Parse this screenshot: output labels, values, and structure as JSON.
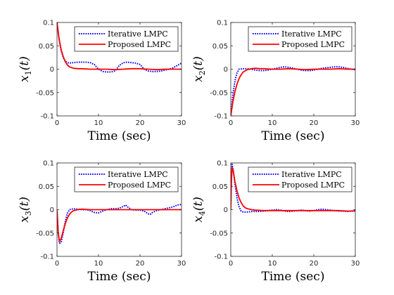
{
  "chart_data": [
    {
      "type": "line",
      "ylabel": "x_1(t)",
      "ylabel_main": "x",
      "ylabel_sub": "1",
      "ylabel_tail": "(t)",
      "xlabel": "Time (sec)",
      "xlim": [
        0,
        30
      ],
      "ylim": [
        -0.1,
        0.1
      ],
      "xticks": [
        "0",
        "10",
        "20",
        "30"
      ],
      "yticks": [
        "0.1",
        "0.05",
        "0",
        "-0.05",
        "-0.1"
      ],
      "legend_position": "top-right",
      "series": [
        {
          "name": "Iterative LMPC",
          "color": "#0000ff",
          "style": "dotted",
          "x": [
            0,
            0.5,
            1,
            1.5,
            2,
            2.5,
            3,
            4,
            5,
            6,
            7,
            8,
            9,
            10,
            11,
            12,
            13,
            14,
            15,
            16,
            17,
            18,
            19,
            20,
            21,
            22,
            23,
            24,
            25,
            26,
            27,
            28,
            29,
            30
          ],
          "y": [
            0.1,
            0.065,
            0.04,
            0.025,
            0.017,
            0.014,
            0.013,
            0.014,
            0.015,
            0.015,
            0.015,
            0.014,
            0.01,
            0.0,
            -0.005,
            -0.006,
            -0.006,
            -0.004,
            0.008,
            0.014,
            0.015,
            0.014,
            0.013,
            0.01,
            0.0,
            -0.004,
            -0.005,
            -0.005,
            -0.004,
            -0.002,
            0.0,
            0.003,
            0.008,
            0.013
          ]
        },
        {
          "name": "Proposed LMPC",
          "color": "#ff0000",
          "style": "solid",
          "x": [
            0,
            0.5,
            1,
            1.5,
            2,
            2.5,
            3,
            4,
            5,
            6,
            8,
            10,
            12,
            14,
            16,
            18,
            20,
            22,
            24,
            26,
            28,
            30
          ],
          "y": [
            0.1,
            0.065,
            0.042,
            0.027,
            0.016,
            0.009,
            0.005,
            0.002,
            0.001,
            0.001,
            0.0,
            0.0,
            0.0,
            -0.001,
            0.0,
            0.001,
            0.001,
            0.0,
            -0.001,
            0.0,
            0.0,
            0.0
          ]
        }
      ]
    },
    {
      "type": "line",
      "ylabel": "x_2(t)",
      "ylabel_main": "x",
      "ylabel_sub": "2",
      "ylabel_tail": "(t)",
      "xlabel": "Time (sec)",
      "xlim": [
        0,
        30
      ],
      "ylim": [
        -0.1,
        0.1
      ],
      "xticks": [
        "0",
        "10",
        "20",
        "30"
      ],
      "yticks": [
        "0.1",
        "0.05",
        "0",
        "-0.05",
        "-0.1"
      ],
      "legend_position": "top-right",
      "series": [
        {
          "name": "Iterative LMPC",
          "color": "#0000ff",
          "style": "dotted",
          "x": [
            0,
            0.5,
            1,
            1.5,
            2,
            3,
            4,
            5,
            6,
            7,
            8,
            9,
            10,
            11,
            12,
            13,
            14,
            15,
            16,
            17,
            18,
            19,
            20,
            21,
            22,
            23,
            24,
            25,
            26,
            27,
            28,
            29,
            30
          ],
          "y": [
            -0.1,
            -0.055,
            -0.025,
            -0.008,
            0.0,
            0.001,
            0.001,
            0.0,
            -0.002,
            -0.003,
            -0.003,
            -0.002,
            0.0,
            0.002,
            0.004,
            0.005,
            0.004,
            0.002,
            0.0,
            -0.002,
            -0.003,
            -0.003,
            -0.002,
            0.0,
            0.002,
            0.003,
            0.004,
            0.005,
            0.005,
            0.004,
            0.002,
            0.0,
            -0.001
          ]
        },
        {
          "name": "Proposed LMPC",
          "color": "#ff0000",
          "style": "solid",
          "x": [
            0,
            0.5,
            1,
            1.5,
            2,
            2.5,
            3,
            4,
            5,
            6,
            7,
            8,
            10,
            12,
            14,
            16,
            18,
            20,
            22,
            24,
            26,
            28,
            30
          ],
          "y": [
            -0.1,
            -0.07,
            -0.048,
            -0.032,
            -0.02,
            -0.012,
            -0.006,
            -0.001,
            0.001,
            0.002,
            0.001,
            0.001,
            0.0,
            0.0,
            0.001,
            0.0,
            -0.001,
            0.0,
            0.0,
            0.0,
            0.001,
            0.0,
            0.0
          ]
        }
      ]
    },
    {
      "type": "line",
      "ylabel": "x_3(t)",
      "ylabel_main": "x",
      "ylabel_sub": "3",
      "ylabel_tail": "(t)",
      "xlabel": "Time (sec)",
      "xlim": [
        0,
        30
      ],
      "ylim": [
        -0.1,
        0.1
      ],
      "xticks": [
        "0",
        "10",
        "20",
        "30"
      ],
      "yticks": [
        "0.1",
        "0.05",
        "0",
        "-0.05",
        "-0.1"
      ],
      "legend_position": "top-right",
      "series": [
        {
          "name": "Iterative LMPC",
          "color": "#0000ff",
          "style": "dotted",
          "x": [
            0,
            0.3,
            0.6,
            1,
            1.5,
            2,
            2.5,
            3,
            4,
            5,
            6,
            7,
            8,
            9,
            10,
            11,
            12,
            13,
            14,
            15,
            16,
            16.5,
            17,
            18,
            19,
            20,
            21,
            22,
            22.5,
            23,
            24,
            25,
            26,
            27,
            28,
            29,
            30
          ],
          "y": [
            0.0,
            -0.05,
            -0.072,
            -0.07,
            -0.05,
            -0.025,
            -0.008,
            0.0,
            0.002,
            0.001,
            0.0,
            0.0,
            -0.002,
            -0.006,
            -0.007,
            -0.003,
            0.0,
            0.002,
            0.002,
            0.003,
            0.007,
            0.01,
            0.006,
            0.0,
            -0.001,
            -0.001,
            -0.003,
            -0.009,
            -0.01,
            -0.006,
            -0.002,
            0.0,
            0.002,
            0.004,
            0.006,
            0.01,
            0.011
          ]
        },
        {
          "name": "Proposed LMPC",
          "color": "#ff0000",
          "style": "solid",
          "x": [
            0,
            0.3,
            0.6,
            1,
            1.5,
            2,
            2.5,
            3,
            3.5,
            4,
            5,
            6,
            8,
            10,
            12,
            14,
            16,
            18,
            20,
            22,
            24,
            26,
            28,
            30
          ],
          "y": [
            0.0,
            -0.05,
            -0.068,
            -0.062,
            -0.045,
            -0.03,
            -0.018,
            -0.01,
            -0.005,
            -0.002,
            0.0,
            0.001,
            0.0,
            0.0,
            0.0,
            0.0,
            0.0,
            0.0,
            0.0,
            0.0,
            0.0,
            0.0,
            0.0,
            0.0
          ]
        }
      ]
    },
    {
      "type": "line",
      "ylabel": "x_4(t)",
      "ylabel_main": "x",
      "ylabel_sub": "4",
      "ylabel_tail": "(t)",
      "xlabel": "Time (sec)",
      "xlim": [
        0,
        30
      ],
      "ylim": [
        -0.1,
        0.1
      ],
      "xticks": [
        "0",
        "10",
        "20",
        "30"
      ],
      "yticks": [
        "0.1",
        "0.05",
        "0",
        "-0.05",
        "-0.1"
      ],
      "legend_position": "top-right",
      "series": [
        {
          "name": "Iterative LMPC",
          "color": "#0000ff",
          "style": "dotted",
          "x": [
            0,
            0.15,
            0.3,
            0.6,
            1,
            1.5,
            2,
            2.5,
            3,
            4,
            5,
            6,
            7,
            8,
            9,
            10,
            11,
            12,
            13,
            14,
            15,
            16,
            17,
            18,
            19,
            20,
            21,
            22,
            23,
            24,
            25,
            26,
            27,
            28,
            29,
            30
          ],
          "y": [
            0.0,
            0.07,
            0.097,
            0.085,
            0.055,
            0.025,
            0.006,
            -0.003,
            -0.005,
            -0.005,
            -0.004,
            -0.004,
            -0.004,
            -0.003,
            -0.002,
            -0.001,
            0.0,
            -0.001,
            -0.003,
            -0.004,
            -0.003,
            -0.002,
            -0.001,
            -0.002,
            -0.003,
            -0.002,
            0.0,
            0.001,
            0.0,
            -0.001,
            -0.002,
            -0.003,
            -0.003,
            -0.004,
            -0.003,
            -0.002
          ]
        },
        {
          "name": "Proposed LMPC",
          "color": "#ff0000",
          "style": "solid",
          "x": [
            0,
            0.15,
            0.3,
            0.6,
            1,
            1.5,
            2,
            2.5,
            3,
            3.5,
            4,
            5,
            6,
            8,
            10,
            12,
            14,
            16,
            18,
            20,
            22,
            24,
            26,
            28,
            30
          ],
          "y": [
            0.0,
            0.06,
            0.09,
            0.082,
            0.06,
            0.04,
            0.025,
            0.015,
            0.008,
            0.004,
            0.002,
            0.0,
            -0.001,
            -0.002,
            -0.002,
            -0.002,
            -0.002,
            -0.002,
            -0.002,
            -0.002,
            -0.002,
            -0.002,
            -0.002,
            -0.003,
            -0.003
          ]
        }
      ]
    }
  ]
}
